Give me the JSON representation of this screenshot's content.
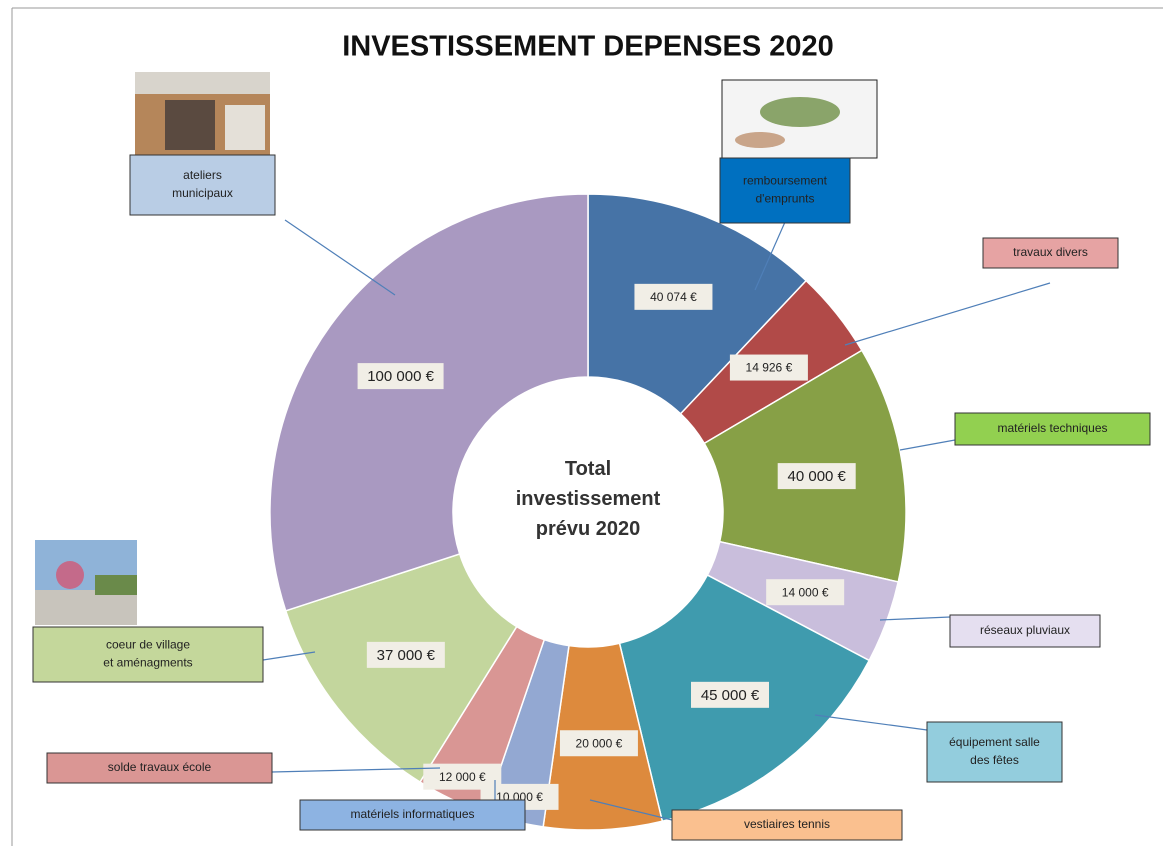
{
  "chart_data": {
    "type": "donut",
    "title": "INVESTISSEMENT DEPENSES 2020",
    "center_label": "Total investissement prévu 2020",
    "categories": [
      "remboursement d'emprunts",
      "travaux divers",
      "matériels techniques",
      "réseaux pluviaux",
      "équipement salle des fêtes",
      "vestiaires tennis",
      "matériels informatiques",
      "solde travaux école",
      "coeur de village et aménagments",
      "ateliers municipaux"
    ],
    "values": [
      40074,
      14926,
      40000,
      14000,
      45000,
      20000,
      10000,
      12000,
      37000,
      100000
    ],
    "value_labels": [
      "40 074 €",
      "14 926 €",
      "40 000 €",
      "14 000 €",
      "45 000 €",
      "20 000 €",
      "10 000 €",
      "12 000 €",
      "37 000 €",
      "100 000 €"
    ],
    "colors": [
      "#4673a6",
      "#b14a48",
      "#87a046",
      "#c9bedc",
      "#3f9bae",
      "#dd8a3d",
      "#93a8d2",
      "#d99694",
      "#c3d69d",
      "#a999c1"
    ],
    "box_colors": [
      "#0070c0",
      "#e6a3a3",
      "#92d050",
      "#e5dff0",
      "#93cddd",
      "#fac08f",
      "#8db3e2",
      "#da9694",
      "#c4d79b",
      "#b9cde5"
    ]
  }
}
